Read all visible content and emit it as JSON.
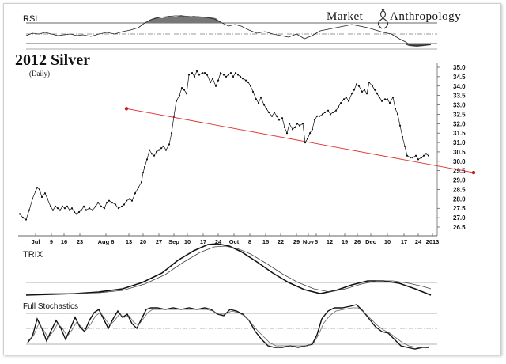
{
  "brand": {
    "word1": "Market",
    "word2": "Anthropology",
    "logo_icon": "dna-helix-icon"
  },
  "chart_data": {
    "type": "line",
    "title": "2012 Silver",
    "subtitle": "(Daily)",
    "y_ticks": [
      "35.0",
      "34.5",
      "34.0",
      "33.5",
      "33.0",
      "32.5",
      "32.0",
      "31.5",
      "31.0",
      "30.5",
      "30.0",
      "29.5",
      "29.0",
      "28.5",
      "28.0",
      "27.5",
      "27.0",
      "26.5"
    ],
    "ylim": [
      26.5,
      35.0
    ],
    "x_ticks": [
      "Jul",
      "9",
      "16",
      "23",
      "Aug 6",
      "13",
      "20",
      "27",
      "Sep",
      "10",
      "17",
      "24",
      "Oct",
      "8",
      "15",
      "22",
      "29",
      "Nov",
      "5",
      "12",
      "19",
      "26",
      "Dec",
      "10",
      "17",
      "24",
      "2013"
    ],
    "x_tick_pos": [
      40,
      60,
      76,
      96,
      129,
      158,
      176,
      196,
      215,
      232,
      252,
      271,
      291,
      311,
      331,
      350,
      370,
      385,
      395,
      412,
      431,
      447,
      464,
      485,
      506,
      524,
      542
    ],
    "x_range": [
      18,
      548
    ],
    "series": [
      {
        "x": [
          20,
          24,
          28,
          32,
          36,
          40,
          42,
          45,
          48,
          52,
          55,
          59,
          62,
          65,
          68,
          71,
          74,
          77,
          80,
          83,
          86,
          89,
          92,
          95,
          98,
          101,
          104,
          108,
          112,
          116,
          119,
          123,
          127,
          130,
          133,
          137,
          141,
          145,
          149,
          152,
          155,
          159,
          162,
          166,
          170,
          174,
          176,
          178,
          181,
          184,
          187,
          190,
          193,
          196,
          199,
          202,
          205,
          209,
          212,
          215,
          218,
          222,
          225,
          228,
          231,
          234,
          238,
          241,
          244,
          247,
          251,
          254,
          257,
          261,
          264,
          268,
          271,
          274,
          278,
          281,
          284,
          287,
          290,
          293,
          296,
          299,
          302,
          306,
          309,
          312,
          315,
          319,
          322,
          325,
          329,
          332,
          335,
          339,
          342,
          345,
          348,
          352,
          355,
          358,
          361,
          365,
          368,
          371,
          374,
          378,
          381,
          384,
          387,
          390,
          393,
          396,
          399,
          403,
          406,
          410,
          413,
          416,
          420,
          423,
          426,
          430,
          433,
          436,
          440,
          443,
          446,
          449,
          453,
          456,
          459,
          462,
          466,
          469,
          472,
          475,
          478,
          482,
          485,
          488,
          492,
          495,
          498,
          501,
          504,
          507,
          510,
          514,
          517,
          521,
          524,
          528,
          531,
          534,
          537
        ],
        "y": [
          27.2,
          27.0,
          26.9,
          27.4,
          28.0,
          28.4,
          28.6,
          28.5,
          28.1,
          28.3,
          28.0,
          27.6,
          27.4,
          27.6,
          27.5,
          27.4,
          27.6,
          27.5,
          27.6,
          27.4,
          27.5,
          27.3,
          27.2,
          27.3,
          27.4,
          27.6,
          27.4,
          27.5,
          27.4,
          27.6,
          27.8,
          27.6,
          27.5,
          27.8,
          27.9,
          27.8,
          27.7,
          27.5,
          27.6,
          27.7,
          27.9,
          28.0,
          27.9,
          28.3,
          28.6,
          28.9,
          29.4,
          29.7,
          30.1,
          30.6,
          30.4,
          30.3,
          30.5,
          30.6,
          30.7,
          30.8,
          30.6,
          30.9,
          31.5,
          32.4,
          33.2,
          33.5,
          33.9,
          33.8,
          33.6,
          34.6,
          34.7,
          34.5,
          34.8,
          34.6,
          34.7,
          34.7,
          34.6,
          34.2,
          34.4,
          34.0,
          34.3,
          34.7,
          34.6,
          34.5,
          34.6,
          34.7,
          34.5,
          34.7,
          34.6,
          34.5,
          34.4,
          34.3,
          34.2,
          34.0,
          33.7,
          33.3,
          33.1,
          33.4,
          33.0,
          32.8,
          32.6,
          32.4,
          32.6,
          32.4,
          32.2,
          32.3,
          31.8,
          31.5,
          32.0,
          31.7,
          31.8,
          32.0,
          31.9,
          32.0,
          31.0,
          31.2,
          31.5,
          31.7,
          32.2,
          32.4,
          32.4,
          32.5,
          32.6,
          32.7,
          32.5,
          32.6,
          32.7,
          32.9,
          33.1,
          33.3,
          33.4,
          33.2,
          33.6,
          33.8,
          34.1,
          34.0,
          33.7,
          33.8,
          33.6,
          34.2,
          34.0,
          33.8,
          33.6,
          33.4,
          33.2,
          33.3,
          33.3,
          33.1,
          33.4,
          32.8,
          32.5,
          31.9,
          31.3,
          30.8,
          30.3,
          30.2,
          30.2,
          30.3,
          30.1,
          30.2,
          30.3,
          30.4,
          30.3
        ]
      }
    ],
    "trendline": {
      "x": [
        155,
        594
      ],
      "y": [
        32.8,
        29.4
      ],
      "color": "#e03030"
    },
    "main_color": "#111111",
    "panels": [
      {
        "label": "RSI"
      },
      {
        "label": "TRIX"
      },
      {
        "label": "Full Stochastics"
      }
    ],
    "grid": false
  }
}
